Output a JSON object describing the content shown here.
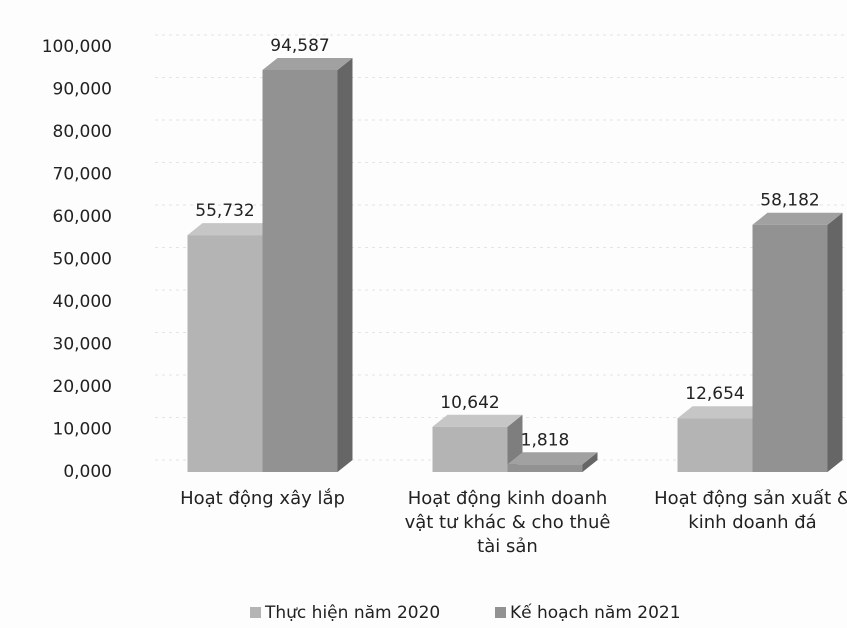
{
  "chart_data": {
    "type": "bar3d",
    "categories": [
      "Hoạt động xây lắp",
      "Hoạt động kinh doanh vật tư khác & cho thuê tài sản",
      "Hoạt động sản xuất & kinh doanh đá"
    ],
    "series": [
      {
        "name": "Thực hiện năm 2020",
        "color": "#b4b4b4",
        "values": [
          55732,
          10642,
          12654
        ],
        "value_labels": [
          "55,732",
          "10,642",
          "12,654"
        ]
      },
      {
        "name": "Kế hoạch năm 2021",
        "color": "#929292",
        "values": [
          94587,
          1818,
          58182
        ],
        "value_labels": [
          "94,587",
          "1,818",
          "58,182"
        ]
      }
    ],
    "ylim": [
      0,
      100000
    ],
    "yticks": [
      {
        "value": 0,
        "label": "0,000"
      },
      {
        "value": 10000,
        "label": "10,000"
      },
      {
        "value": 20000,
        "label": "20,000"
      },
      {
        "value": 30000,
        "label": "30,000"
      },
      {
        "value": 40000,
        "label": "40,000"
      },
      {
        "value": 50000,
        "label": "50,000"
      },
      {
        "value": 60000,
        "label": "60,000"
      },
      {
        "value": 70000,
        "label": "70,000"
      },
      {
        "value": 80000,
        "label": "80,000"
      },
      {
        "value": 90000,
        "label": "90,000"
      },
      {
        "value": 100000,
        "label": "100,000"
      }
    ],
    "grid": true,
    "legend": "bottom"
  }
}
